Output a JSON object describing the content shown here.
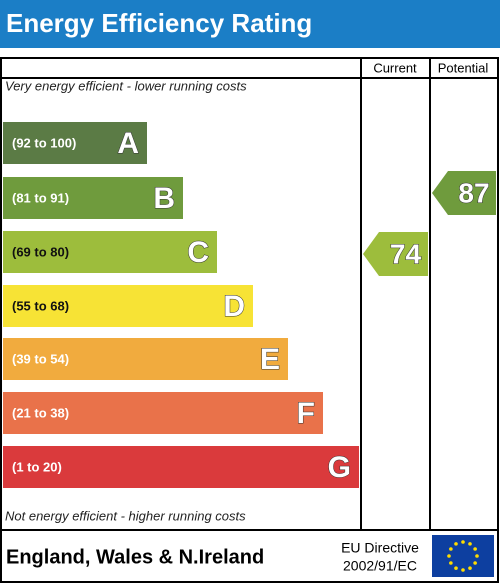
{
  "title": "Energy Efficiency Rating",
  "headers": [
    "Current",
    "Potential"
  ],
  "top_note": "Very energy efficient - lower running costs",
  "bottom_note": "Not energy efficient - higher running costs",
  "bands": [
    {
      "range": "(92 to 100)",
      "letter": "A",
      "color": "#5b7b45"
    },
    {
      "range": "(81 to 91)",
      "letter": "B",
      "color": "#6f9b3d"
    },
    {
      "range": "(69 to 80)",
      "letter": "C",
      "color": "#9dbd3c"
    },
    {
      "range": "(55 to 68)",
      "letter": "D",
      "color": "#f7e335"
    },
    {
      "range": "(39 to 54)",
      "letter": "E",
      "color": "#f1ab3e"
    },
    {
      "range": "(21 to 38)",
      "letter": "F",
      "color": "#e9724a"
    },
    {
      "range": "(1 to 20)",
      "letter": "G",
      "color": "#da3a3c"
    }
  ],
  "current": {
    "value": 74,
    "color": "#9dbd3c"
  },
  "potential": {
    "value": 87,
    "color": "#6f9b3d"
  },
  "footer": {
    "region": "England, Wales & N.Ireland",
    "directive": [
      "EU Directive",
      "2002/91/EC"
    ]
  }
}
